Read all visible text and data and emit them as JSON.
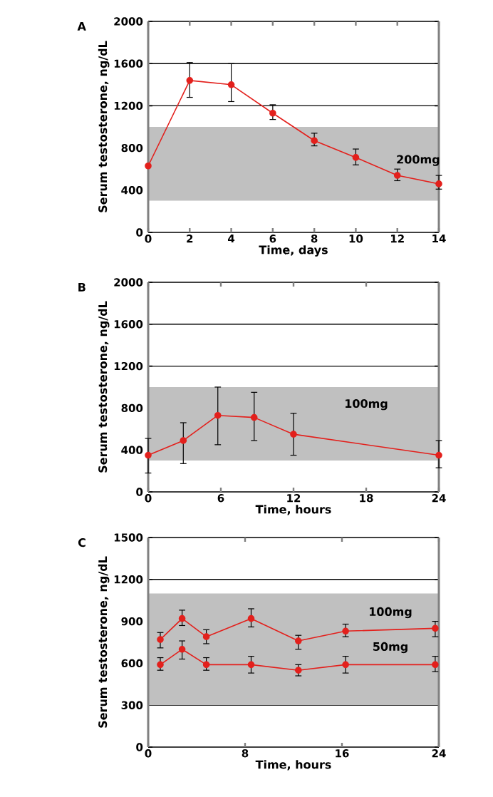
{
  "chart_data": [
    {
      "type": "line",
      "title": "A",
      "xlabel": "Time, days",
      "ylabel": "Serum testosterone, ng/dL",
      "xlim": [
        0,
        14
      ],
      "xticks": [
        0,
        2,
        4,
        6,
        8,
        10,
        12,
        14
      ],
      "ylim": [
        0,
        2000
      ],
      "yticks": [
        0,
        400,
        800,
        1200,
        1600,
        2000
      ],
      "grid": "y",
      "legend": false,
      "marker": "circle",
      "line_style": "solid",
      "bands": [
        {
          "axis": "y",
          "from": 300,
          "to": 1000,
          "color": "#c0c0c0"
        }
      ],
      "series": [
        {
          "name": "200mg",
          "color": "#e3201c",
          "x": [
            0,
            2,
            4,
            6,
            8,
            10,
            12,
            14
          ],
          "values": [
            630,
            1440,
            1400,
            1130,
            870,
            710,
            540,
            460
          ],
          "errors": [
            null,
            [
              1280,
              1610
            ],
            [
              1240,
              1600
            ],
            [
              1070,
              1210
            ],
            [
              820,
              940
            ],
            [
              640,
              790
            ],
            [
              490,
              600
            ],
            [
              410,
              540
            ]
          ]
        }
      ]
    },
    {
      "type": "line",
      "title": "B",
      "xlabel": "Time, hours",
      "ylabel": "Serum testosterone, ng/dL",
      "xlim": [
        0,
        24
      ],
      "xticks": [
        0,
        6,
        12,
        18,
        24
      ],
      "ylim": [
        0,
        2000
      ],
      "yticks": [
        0,
        400,
        800,
        1200,
        1600,
        2000
      ],
      "grid": "y",
      "legend": false,
      "marker": "circle",
      "line_style": "solid",
      "bands": [
        {
          "axis": "y",
          "from": 300,
          "to": 1000,
          "color": "#c0c0c0"
        }
      ],
      "series": [
        {
          "name": "100mg",
          "color": "#e3201c",
          "x": [
            0,
            2.9,
            5.75,
            8.75,
            12,
            24
          ],
          "values": [
            350,
            490,
            730,
            710,
            550,
            350
          ],
          "errors": [
            [
              180,
              510
            ],
            [
              270,
              660
            ],
            [
              450,
              1000
            ],
            [
              490,
              950
            ],
            [
              350,
              750
            ],
            [
              230,
              490
            ]
          ]
        }
      ]
    },
    {
      "type": "line",
      "title": "C",
      "xlabel": "Time, hours",
      "ylabel": "Serum testosterone, ng/dL",
      "xlim": [
        0,
        24
      ],
      "xticks": [
        0,
        8,
        16,
        24
      ],
      "ylim": [
        0,
        1500
      ],
      "yticks": [
        0,
        300,
        600,
        900,
        1200,
        1500
      ],
      "grid": "y",
      "legend": false,
      "marker": "circle",
      "line_style": "solid",
      "bands": [
        {
          "axis": "y",
          "from": 300,
          "to": 1100,
          "color": "#c0c0c0"
        }
      ],
      "series": [
        {
          "name": "100mg",
          "color": "#e3201c",
          "x": [
            1,
            2.8,
            4.8,
            8.5,
            12.4,
            16.3,
            23.7
          ],
          "values": [
            770,
            920,
            790,
            920,
            760,
            830,
            850
          ],
          "errors": [
            [
              710,
              820
            ],
            [
              870,
              980
            ],
            [
              740,
              840
            ],
            [
              860,
              990
            ],
            [
              700,
              800
            ],
            [
              790,
              880
            ],
            [
              790,
              900
            ]
          ]
        },
        {
          "name": "50mg",
          "color": "#e3201c",
          "x": [
            1,
            2.8,
            4.8,
            8.5,
            12.4,
            16.3,
            23.7
          ],
          "values": [
            590,
            700,
            590,
            590,
            550,
            590,
            590
          ],
          "errors": [
            [
              550,
              640
            ],
            [
              630,
              760
            ],
            [
              550,
              640
            ],
            [
              530,
              650
            ],
            [
              510,
              590
            ],
            [
              530,
              650
            ],
            [
              540,
              650
            ]
          ]
        }
      ]
    }
  ]
}
